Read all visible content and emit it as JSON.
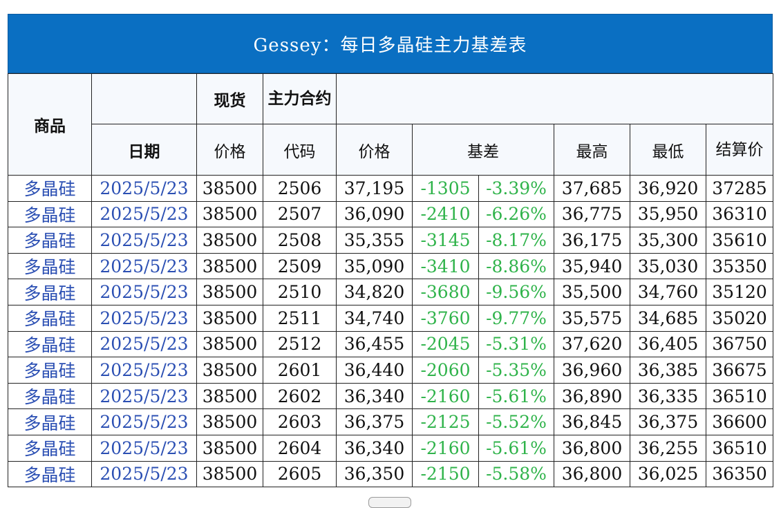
{
  "title": "Gessey：每日多晶硅主力基差表",
  "headers": {
    "commodity": "商品",
    "spot": "现货",
    "main_contract": "主力合约",
    "date": "日期",
    "spot_price": "价格",
    "code": "代码",
    "price": "价格",
    "basis": "基差",
    "high": "最高",
    "low": "最低",
    "settle": "结算价"
  },
  "colors": {
    "header_bg": "#0a6fc2",
    "link_blue": "#2b4fb3",
    "negative_green": "#2fb34a"
  },
  "rows": [
    {
      "name": "多晶硅",
      "date": "2025/5/23",
      "spot": "38500",
      "code": "2506",
      "price": "37,195",
      "basis": "-1305",
      "pct": "-3.39%",
      "high": "37,685",
      "low": "36,920",
      "settle": "37285"
    },
    {
      "name": "多晶硅",
      "date": "2025/5/23",
      "spot": "38500",
      "code": "2507",
      "price": "36,090",
      "basis": "-2410",
      "pct": "-6.26%",
      "high": "36,775",
      "low": "35,950",
      "settle": "36310"
    },
    {
      "name": "多晶硅",
      "date": "2025/5/23",
      "spot": "38500",
      "code": "2508",
      "price": "35,355",
      "basis": "-3145",
      "pct": "-8.17%",
      "high": "36,175",
      "low": "35,300",
      "settle": "35610"
    },
    {
      "name": "多晶硅",
      "date": "2025/5/23",
      "spot": "38500",
      "code": "2509",
      "price": "35,090",
      "basis": "-3410",
      "pct": "-8.86%",
      "high": "35,940",
      "low": "35,030",
      "settle": "35350"
    },
    {
      "name": "多晶硅",
      "date": "2025/5/23",
      "spot": "38500",
      "code": "2510",
      "price": "34,820",
      "basis": "-3680",
      "pct": "-9.56%",
      "high": "35,500",
      "low": "34,760",
      "settle": "35120"
    },
    {
      "name": "多晶硅",
      "date": "2025/5/23",
      "spot": "38500",
      "code": "2511",
      "price": "34,740",
      "basis": "-3760",
      "pct": "-9.77%",
      "high": "35,575",
      "low": "34,685",
      "settle": "35020"
    },
    {
      "name": "多晶硅",
      "date": "2025/5/23",
      "spot": "38500",
      "code": "2512",
      "price": "36,455",
      "basis": "-2045",
      "pct": "-5.31%",
      "high": "37,620",
      "low": "36,405",
      "settle": "36750"
    },
    {
      "name": "多晶硅",
      "date": "2025/5/23",
      "spot": "38500",
      "code": "2601",
      "price": "36,440",
      "basis": "-2060",
      "pct": "-5.35%",
      "high": "36,960",
      "low": "36,385",
      "settle": "36675"
    },
    {
      "name": "多晶硅",
      "date": "2025/5/23",
      "spot": "38500",
      "code": "2602",
      "price": "36,340",
      "basis": "-2160",
      "pct": "-5.61%",
      "high": "36,890",
      "low": "36,335",
      "settle": "36510"
    },
    {
      "name": "多晶硅",
      "date": "2025/5/23",
      "spot": "38500",
      "code": "2603",
      "price": "36,375",
      "basis": "-2125",
      "pct": "-5.52%",
      "high": "36,845",
      "low": "36,375",
      "settle": "36600"
    },
    {
      "name": "多晶硅",
      "date": "2025/5/23",
      "spot": "38500",
      "code": "2604",
      "price": "36,340",
      "basis": "-2160",
      "pct": "-5.61%",
      "high": "36,800",
      "low": "36,255",
      "settle": "36510"
    },
    {
      "name": "多晶硅",
      "date": "2025/5/23",
      "spot": "38500",
      "code": "2605",
      "price": "36,350",
      "basis": "-2150",
      "pct": "-5.58%",
      "high": "36,800",
      "low": "36,025",
      "settle": "36350"
    }
  ]
}
